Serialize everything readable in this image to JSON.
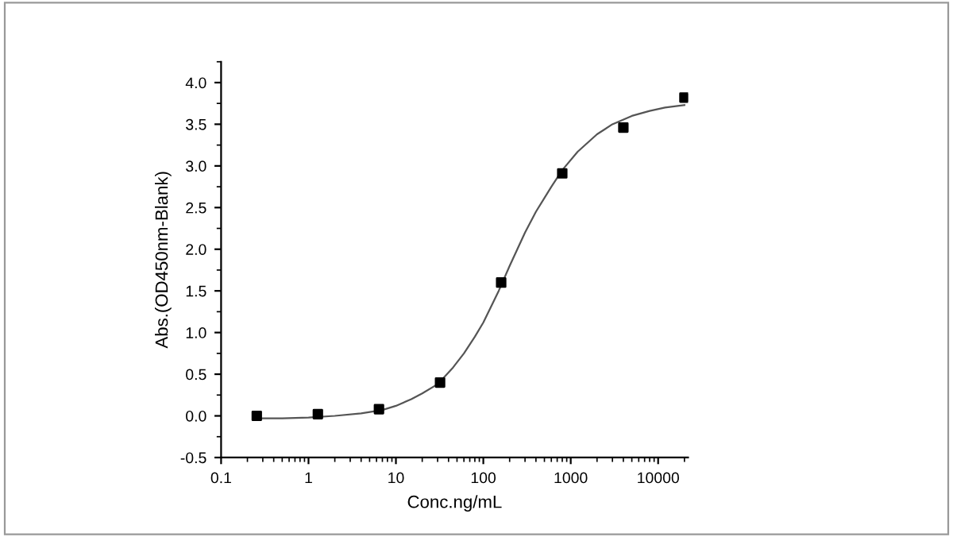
{
  "chart_data": {
    "type": "scatter",
    "xlabel": "Conc.ng/mL",
    "ylabel": "Abs.(OD450nm-Blank)",
    "log": "x",
    "marker": "square",
    "grid": false,
    "xlim": [
      0.1,
      22000
    ],
    "xticks": [
      0.1,
      1,
      10,
      100,
      1000,
      10000
    ],
    "ylim": [
      -0.5,
      4.25
    ],
    "yticks": [
      -0.5,
      {
        "value": 0,
        "label": "0.0"
      },
      0.5,
      {
        "value": 1,
        "label": "1.0"
      },
      1.5,
      {
        "value": 2,
        "label": "2.0"
      },
      2.5,
      {
        "value": 3,
        "label": "3.0"
      },
      3.5,
      {
        "value": 4,
        "label": "4.0"
      }
    ],
    "series": [
      {
        "color": "#000000",
        "x": [
          0.256,
          1.28,
          6.4,
          32,
          160,
          800,
          4000,
          20000
        ],
        "values": [
          0.0,
          0.02,
          0.08,
          0.4,
          1.6,
          2.91,
          3.46,
          3.82
        ]
      },
      {
        "type": "line",
        "color": "#555555",
        "marker": "none",
        "x": [
          0.25,
          0.5,
          1,
          2,
          4,
          7,
          10,
          15,
          20,
          30,
          45,
          60,
          80,
          100,
          150,
          200,
          300,
          400,
          600,
          800,
          1200,
          2000,
          3000,
          5000,
          8000,
          12000,
          20000
        ],
        "values": [
          -0.03,
          -0.03,
          -0.02,
          0.0,
          0.03,
          0.07,
          0.12,
          0.2,
          0.27,
          0.38,
          0.58,
          0.75,
          0.95,
          1.12,
          1.5,
          1.8,
          2.2,
          2.45,
          2.75,
          2.95,
          3.17,
          3.38,
          3.5,
          3.6,
          3.66,
          3.7,
          3.73
        ]
      }
    ]
  }
}
